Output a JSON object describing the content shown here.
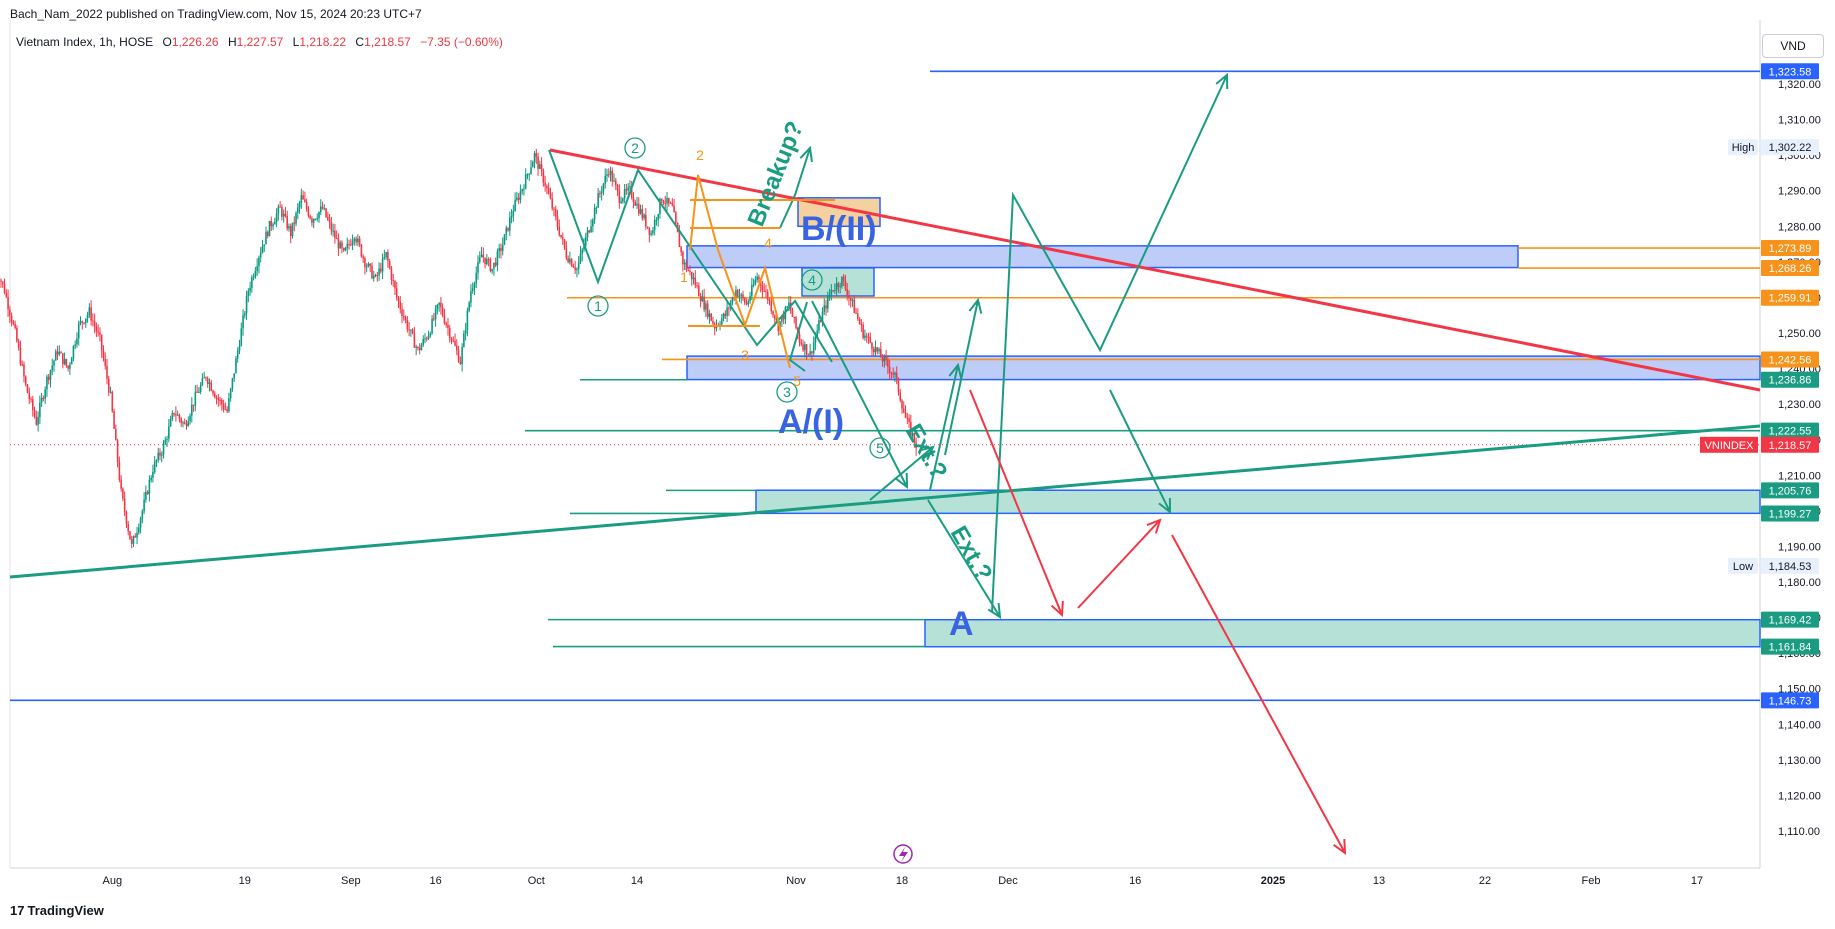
{
  "header": {
    "published": "Bach_Nam_2022 published on TradingView.com, Nov 15, 2024 20:23 UTC+7"
  },
  "legend": {
    "symbol": "Vietnam Index, 1h, HOSE",
    "o_label": "O",
    "o_value": "1,226.26",
    "h_label": "H",
    "h_value": "1,227.57",
    "l_label": "L",
    "l_value": "1,218.22",
    "c_label": "C",
    "c_value": "1,218.57",
    "change": "−7.35 (−0.60%)"
  },
  "currency": "VND",
  "footer": {
    "logo_mark": "17",
    "brand": "TradingView"
  },
  "colors": {
    "up": "#089981",
    "down": "#f23645",
    "teal": "#26a69a",
    "tealline": "#1a9c82",
    "orange": "#f7931a",
    "blue": "#2962ff",
    "red": "#f23645",
    "zone_blue": "#b3c3f7",
    "zone_teal": "#a8dccf"
  },
  "chart_data": {
    "type": "candlestick",
    "ylim": [
      1100,
      1330
    ],
    "y_ticks": [
      1110,
      1120,
      1130,
      1140,
      1150,
      1160,
      1170,
      1180,
      1190,
      1200,
      1210,
      1220,
      1230,
      1240,
      1250,
      1260,
      1270,
      1280,
      1290,
      1300,
      1310,
      1320
    ],
    "y_tick_labels": [
      "1,110.00",
      "1,120.00",
      "1,130.00",
      "1,140.00",
      "1,150.00",
      "1,160.00",
      "1,170.00",
      "1,180.00",
      "1,190.00",
      "1,200.00",
      "1,210.00",
      "1,220.00",
      "1,230.00",
      "1,240.00",
      "1,250.00",
      "1,260.00",
      "1,270.00",
      "1,280.00",
      "1,290.00",
      "1,300.00",
      "1,310.00",
      "1,320.00"
    ],
    "x_tick_labels": [
      {
        "label": "Aug",
        "t": 0.5
      },
      {
        "label": "19",
        "t": 13
      },
      {
        "label": "Sep",
        "t": 23
      },
      {
        "label": "16",
        "t": 31
      },
      {
        "label": "Oct",
        "t": 40.5
      },
      {
        "label": "14",
        "t": 50
      },
      {
        "label": "Nov",
        "t": 65
      },
      {
        "label": "18",
        "t": 75
      },
      {
        "label": "Dec",
        "t": 85
      },
      {
        "label": "16",
        "t": 97
      },
      {
        "label": "2025",
        "t": 110
      },
      {
        "label": "13",
        "t": 120
      },
      {
        "label": "22",
        "t": 130
      },
      {
        "label": "Feb",
        "t": 140
      },
      {
        "label": "17",
        "t": 150
      }
    ],
    "series": [
      {
        "name": "Vietnam Index",
        "points": [
          [
            -10.5,
            1270
          ],
          [
            -9.5,
            1262
          ],
          [
            -8.5,
            1250
          ],
          [
            -7.5,
            1235
          ],
          [
            -6.5,
            1225
          ],
          [
            -5.5,
            1237
          ],
          [
            -4.5,
            1245
          ],
          [
            -3.5,
            1240
          ],
          [
            -2.5,
            1252
          ],
          [
            -1.5,
            1256
          ],
          [
            -0.5,
            1248
          ],
          [
            0.5,
            1232
          ],
          [
            1.5,
            1205
          ],
          [
            2.5,
            1190
          ],
          [
            3.5,
            1200
          ],
          [
            4.5,
            1212
          ],
          [
            5.5,
            1218
          ],
          [
            6.5,
            1228
          ],
          [
            7.5,
            1224
          ],
          [
            8.5,
            1232
          ],
          [
            9.5,
            1238
          ],
          [
            10.5,
            1232
          ],
          [
            11.5,
            1228
          ],
          [
            12.5,
            1245
          ],
          [
            13.5,
            1262
          ],
          [
            14.5,
            1272
          ],
          [
            15.5,
            1280
          ],
          [
            16.5,
            1285
          ],
          [
            17.5,
            1278
          ],
          [
            18.5,
            1288
          ],
          [
            19.5,
            1282
          ],
          [
            20.5,
            1285
          ],
          [
            21.5,
            1278
          ],
          [
            22.5,
            1272
          ],
          [
            23.5,
            1278
          ],
          [
            24.5,
            1270
          ],
          [
            25.5,
            1265
          ],
          [
            26.5,
            1272
          ],
          [
            27.5,
            1260
          ],
          [
            28.5,
            1252
          ],
          [
            29.5,
            1245
          ],
          [
            30.5,
            1250
          ],
          [
            31.5,
            1258
          ],
          [
            32.5,
            1250
          ],
          [
            33.5,
            1242
          ],
          [
            34.5,
            1262
          ],
          [
            35.5,
            1272
          ],
          [
            36.5,
            1268
          ],
          [
            37.5,
            1275
          ],
          [
            38.5,
            1285
          ],
          [
            39.5,
            1292
          ],
          [
            40.5,
            1300
          ],
          [
            41.5,
            1292
          ],
          [
            42.5,
            1282
          ],
          [
            43.5,
            1272
          ],
          [
            44.5,
            1268
          ],
          [
            45.5,
            1278
          ],
          [
            46.5,
            1288
          ],
          [
            47.5,
            1296
          ],
          [
            48.5,
            1288
          ],
          [
            49.5,
            1290
          ],
          [
            50.5,
            1284
          ],
          [
            51.5,
            1278
          ],
          [
            52.5,
            1288
          ],
          [
            53.5,
            1285
          ],
          [
            54.5,
            1270
          ],
          [
            55.5,
            1265
          ],
          [
            56.5,
            1258
          ],
          [
            57.5,
            1252
          ],
          [
            58.5,
            1255
          ],
          [
            59.5,
            1262
          ],
          [
            60.5,
            1258
          ],
          [
            61.5,
            1266
          ],
          [
            62.5,
            1260
          ],
          [
            63.5,
            1252
          ],
          [
            64.5,
            1258
          ],
          [
            65.5,
            1248
          ],
          [
            66.5,
            1244
          ],
          [
            67.5,
            1254
          ],
          [
            68.5,
            1262
          ],
          [
            69.5,
            1265
          ],
          [
            70.5,
            1258
          ],
          [
            71.5,
            1250
          ],
          [
            72.5,
            1246
          ],
          [
            73.5,
            1242
          ],
          [
            74.5,
            1238
          ],
          [
            75.5,
            1226
          ],
          [
            76.5,
            1218.57
          ]
        ]
      }
    ],
    "levels": [
      {
        "value": 1323.58,
        "label": "1,323.58",
        "color": "#2962ff",
        "kind": "line-blue"
      },
      {
        "value": 1302.22,
        "label": "1,302.22",
        "color": "#e3effd",
        "kind": "high",
        "tag": "High"
      },
      {
        "value": 1273.89,
        "label": "1,273.89",
        "color": "#f7931a",
        "kind": "orange"
      },
      {
        "value": 1268.26,
        "label": "1,268.26",
        "color": "#f7931a",
        "kind": "orange"
      },
      {
        "value": 1259.91,
        "label": "1,259.91",
        "color": "#f7931a",
        "kind": "orange"
      },
      {
        "value": 1242.56,
        "label": "1,242.56",
        "color": "#f7931a",
        "kind": "orange"
      },
      {
        "value": 1236.86,
        "label": "1,236.86",
        "color": "#1a9c82",
        "kind": "teal"
      },
      {
        "value": 1222.55,
        "label": "1,222.55",
        "color": "#1a9c82",
        "kind": "teal"
      },
      {
        "value": 1218.57,
        "label": "1,218.57",
        "color": "#f23645",
        "kind": "current",
        "tag": "VNINDEX"
      },
      {
        "value": 1205.76,
        "label": "1,205.76",
        "color": "#1a9c82",
        "kind": "teal"
      },
      {
        "value": 1199.27,
        "label": "1,199.27",
        "color": "#1a9c82",
        "kind": "teal"
      },
      {
        "value": 1184.53,
        "label": "1,184.53",
        "color": "#e3effd",
        "kind": "low",
        "tag": "Low"
      },
      {
        "value": 1169.42,
        "label": "1,169.42",
        "color": "#1a9c82",
        "kind": "teal"
      },
      {
        "value": 1161.84,
        "label": "1,161.84",
        "color": "#1a9c82",
        "kind": "teal"
      },
      {
        "value": 1146.73,
        "label": "1,146.73",
        "color": "#2962ff",
        "kind": "line-blue"
      }
    ],
    "annotations": {
      "wave_labels_green": [
        "1",
        "2",
        "3",
        "4",
        "5"
      ],
      "wave_labels_orange": [
        "1",
        "2",
        "3",
        "4",
        "5"
      ],
      "text_b": "B/(II)",
      "text_a": "A/(I)",
      "text_a2": "A",
      "text_breakup": "Breakup?",
      "text_ext1": "Ext.?",
      "text_ext2": "Ext.?"
    }
  }
}
